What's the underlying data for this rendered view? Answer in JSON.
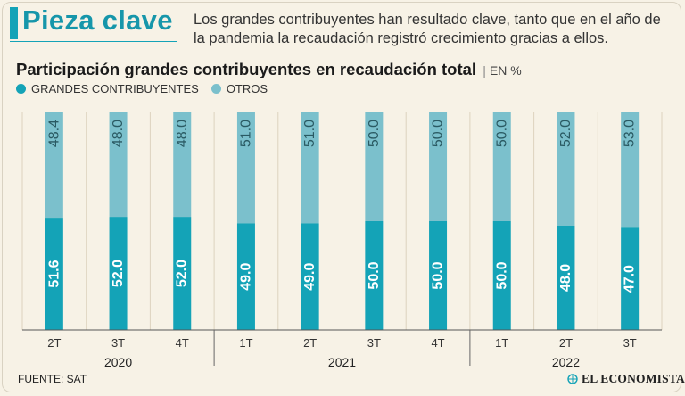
{
  "header": {
    "kicker": "Pieza clave",
    "lede": "Los grandes contribuyentes han resultado clave, tanto que en el año de la pandemia la recaudación registró crecimiento gracias a ellos."
  },
  "chart_data": {
    "type": "bar",
    "stacked": true,
    "title": "Participación grandes contribuyentes en recaudación total",
    "units": "EN %",
    "categories": [
      "2T",
      "3T",
      "4T",
      "1T",
      "2T",
      "3T",
      "4T",
      "1T",
      "2T",
      "3T"
    ],
    "year_groups": [
      {
        "label": "2020",
        "count": 3
      },
      {
        "label": "2021",
        "count": 4
      },
      {
        "label": "2022",
        "count": 3
      }
    ],
    "series": [
      {
        "name": "GRANDES CONTRIBUYENTES",
        "color": "#14a3b7",
        "values": [
          51.6,
          52.0,
          52.0,
          49.0,
          49.0,
          50.0,
          50.0,
          50.0,
          48.0,
          47.0
        ]
      },
      {
        "name": "OTROS",
        "color": "#7bc0cc",
        "values": [
          48.4,
          48.0,
          48.0,
          51.0,
          51.0,
          50.0,
          50.0,
          50.0,
          52.0,
          53.0
        ]
      }
    ],
    "ylim": [
      0,
      100
    ]
  },
  "footer": {
    "source": "FUENTE: SAT",
    "brand": "EL ECONOMISTA"
  }
}
